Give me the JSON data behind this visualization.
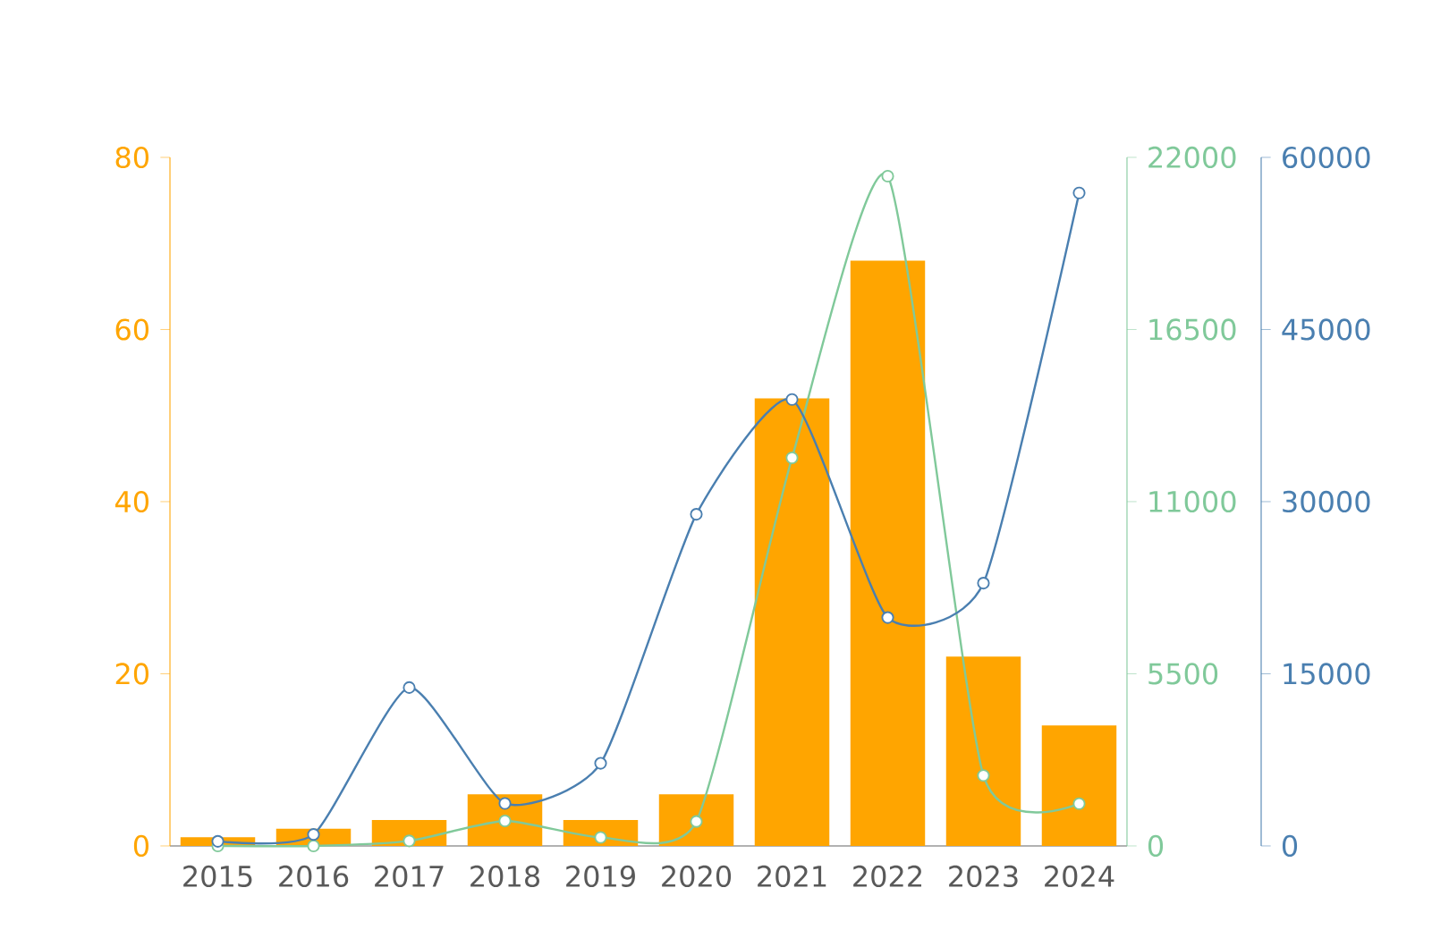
{
  "chart_data": {
    "type": "bar",
    "categories": [
      "2015",
      "2016",
      "2017",
      "2018",
      "2019",
      "2020",
      "2021",
      "2022",
      "2023",
      "2024"
    ],
    "series": [
      {
        "color": "#ffa500",
        "values": [
          1,
          2,
          3,
          6,
          3,
          6,
          52,
          68,
          22,
          14
        ]
      },
      {
        "type": "line",
        "axis": "y2",
        "color": "#80c99a",
        "values": [
          0,
          0,
          160,
          800,
          270,
          780,
          12400,
          21400,
          2250,
          1350
        ]
      },
      {
        "type": "line",
        "axis": "y3",
        "color": "#4a7fb0",
        "values": [
          400,
          1000,
          13800,
          3700,
          7200,
          28900,
          38900,
          19900,
          22900,
          56900
        ]
      }
    ],
    "ylim": [
      0,
      80
    ],
    "yticks": [
      0,
      20,
      40,
      60,
      80
    ],
    "y2lim": [
      0,
      22000
    ],
    "y2ticks": [
      0,
      5500,
      11000,
      16500,
      22000
    ],
    "y3lim": [
      0,
      60000
    ],
    "y3ticks": [
      0,
      15000,
      30000,
      45000,
      60000
    ],
    "marker": "circle"
  }
}
